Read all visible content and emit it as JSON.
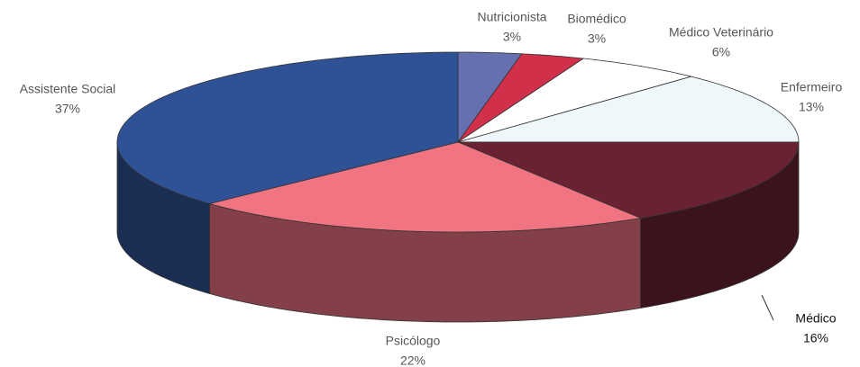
{
  "chart_data": {
    "type": "pie3d",
    "categories": [
      "Nutricionista",
      "Biomédico",
      "Médico Veterinário",
      "Enfermeiro",
      "Médico",
      "Psicólogo",
      "Assistente Social"
    ],
    "values": [
      3,
      3,
      6,
      13,
      16,
      22,
      37
    ],
    "value_labels": [
      "3%",
      "3%",
      "6%",
      "13%",
      "16%",
      "22%",
      "37%"
    ],
    "colors": [
      "#6670b0",
      "#d0304a",
      "#ffffff",
      "#eef8fb",
      "#6a2232",
      "#f07482",
      "#2f5296"
    ]
  }
}
